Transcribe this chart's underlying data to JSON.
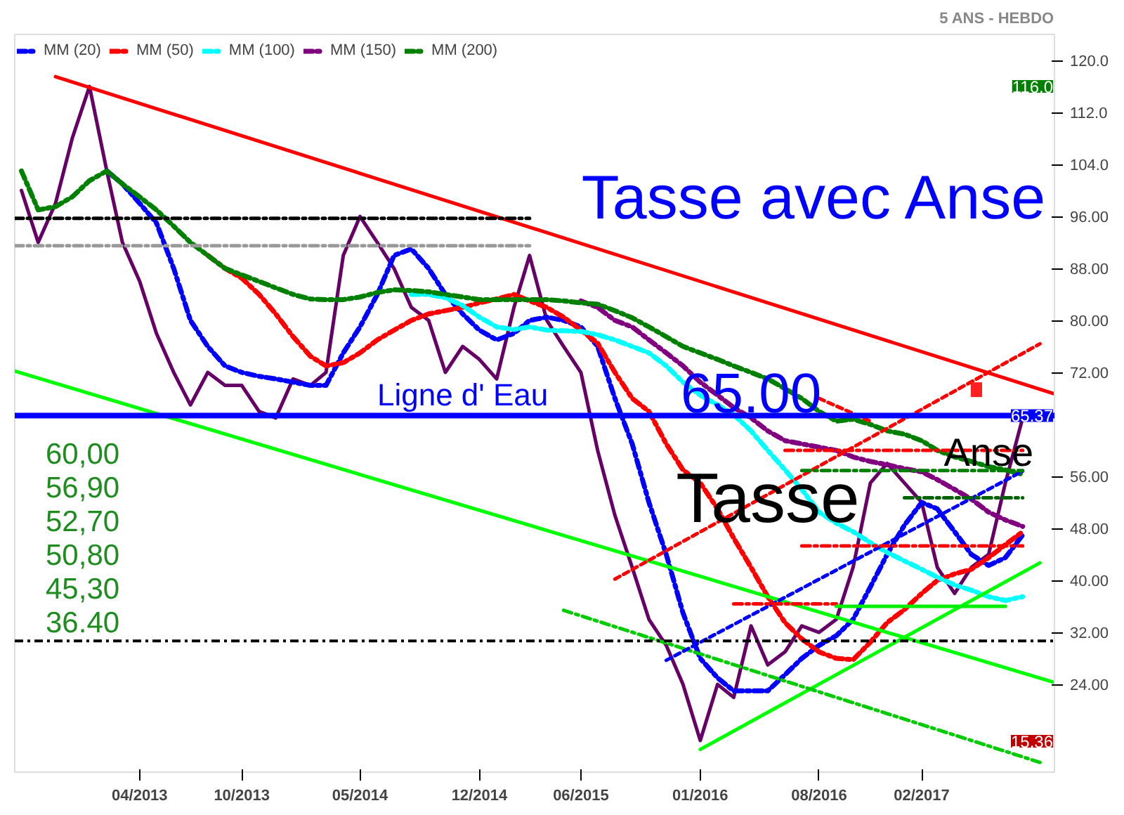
{
  "chart_data": {
    "type": "line",
    "title": "Tasse avec Anse",
    "subtitle": "5 ANS - HEBDO",
    "xlim": [
      "2012-08-20",
      "2017-09-27"
    ],
    "ylim": [
      10.5,
      124
    ],
    "xticks": [
      {
        "value": "2013-04",
        "label": "04/2013"
      },
      {
        "value": "2013-10",
        "label": "10/2013"
      },
      {
        "value": "2014-05",
        "label": "05/2014"
      },
      {
        "value": "2014-12",
        "label": "12/2014"
      },
      {
        "value": "2015-06",
        "label": "06/2015"
      },
      {
        "value": "2016-01",
        "label": "01/2016"
      },
      {
        "value": "2016-08",
        "label": "08/2016"
      },
      {
        "value": "2017-02",
        "label": "02/2017"
      }
    ],
    "yticks": [
      {
        "value": 120,
        "label": "120.0"
      },
      {
        "value": 112,
        "label": "112.0"
      },
      {
        "value": 104,
        "label": "104.0"
      },
      {
        "value": 96,
        "label": "96.00"
      },
      {
        "value": 88,
        "label": "88.00"
      },
      {
        "value": 80,
        "label": "80.00"
      },
      {
        "value": 72,
        "label": "72.00"
      },
      {
        "value": 56,
        "label": "56.00"
      },
      {
        "value": 48,
        "label": "48.00"
      },
      {
        "value": 40,
        "label": "40.00"
      },
      {
        "value": 32,
        "label": "32.00"
      },
      {
        "value": 24,
        "label": "24.00"
      }
    ],
    "legend": "top left",
    "grid": false,
    "marker": "none",
    "series": [
      {
        "color": "#660066",
        "line_style": "solid",
        "x": [
          "2012-09",
          "2012-10",
          "2012-11",
          "2012-12",
          "2013-01",
          "2013-02",
          "2013-03",
          "2013-04",
          "2013-05",
          "2013-06",
          "2013-07",
          "2013-08",
          "2013-09",
          "2013-10",
          "2013-11",
          "2013-12",
          "2014-01",
          "2014-02",
          "2014-03",
          "2014-04",
          "2014-05",
          "2014-06",
          "2014-07",
          "2014-08",
          "2014-09",
          "2014-10",
          "2014-11",
          "2014-12",
          "2015-01",
          "2015-02",
          "2015-03",
          "2015-04",
          "2015-05",
          "2015-06",
          "2015-07",
          "2015-08",
          "2015-09",
          "2015-10",
          "2015-11",
          "2015-12",
          "2016-01",
          "2016-02",
          "2016-03",
          "2016-04",
          "2016-05",
          "2016-06",
          "2016-07",
          "2016-08",
          "2016-09",
          "2016-10",
          "2016-11",
          "2016-12",
          "2017-01",
          "2017-02",
          "2017-03",
          "2017-04",
          "2017-05",
          "2017-06",
          "2017-07",
          "2017-08"
        ],
        "values": [
          100,
          92,
          98,
          108,
          116,
          103,
          92,
          86,
          78,
          72,
          67,
          72,
          70,
          70,
          66,
          65,
          71,
          70,
          72,
          90,
          96,
          92,
          88,
          82,
          80,
          72,
          76,
          74,
          71,
          82,
          90,
          80,
          76,
          72,
          60,
          50,
          42,
          34,
          30,
          24,
          15.36,
          24,
          22,
          33,
          27,
          29,
          33,
          32,
          34,
          42,
          55,
          58,
          55,
          52,
          42,
          38,
          42,
          44,
          55,
          65
        ]
      },
      {
        "name": "MM (20)",
        "color": "#0000ff",
        "line_style": "dashed",
        "x": [
          "2013-02",
          "2013-03",
          "2013-04",
          "2013-05",
          "2013-06",
          "2013-07",
          "2013-08",
          "2013-09",
          "2013-10",
          "2013-11",
          "2013-12",
          "2014-01",
          "2014-02",
          "2014-03",
          "2014-04",
          "2014-05",
          "2014-06",
          "2014-07",
          "2014-08",
          "2014-09",
          "2014-10",
          "2014-11",
          "2014-12",
          "2015-01",
          "2015-02",
          "2015-03",
          "2015-04",
          "2015-05",
          "2015-06",
          "2015-07",
          "2015-08",
          "2015-09",
          "2015-10",
          "2015-11",
          "2015-12",
          "2016-01",
          "2016-02",
          "2016-03",
          "2016-04",
          "2016-05",
          "2016-06",
          "2016-07",
          "2016-08",
          "2016-09",
          "2016-10",
          "2016-11",
          "2016-12",
          "2017-01",
          "2017-02",
          "2017-03",
          "2017-04",
          "2017-05",
          "2017-06",
          "2017-07",
          "2017-08"
        ],
        "values": [
          103,
          101,
          98,
          95,
          88,
          80,
          76,
          73,
          72,
          71.4,
          71,
          70.5,
          70,
          70,
          75,
          79,
          84,
          90,
          91,
          88,
          84,
          81,
          78.5,
          77,
          78,
          80,
          80.5,
          80,
          79,
          76,
          68,
          61,
          52,
          44,
          35,
          28,
          25,
          23,
          23,
          23,
          25.5,
          28,
          30,
          31.5,
          34,
          39,
          44,
          48.5,
          52,
          51,
          47.5,
          44,
          42.3,
          43.5,
          47
        ]
      },
      {
        "name": "MM (50)",
        "color": "#ff0000",
        "line_style": "dashed",
        "x": [
          "2013-08",
          "2013-09",
          "2013-10",
          "2013-11",
          "2013-12",
          "2014-01",
          "2014-02",
          "2014-03",
          "2014-04",
          "2014-05",
          "2014-06",
          "2014-07",
          "2014-08",
          "2014-09",
          "2014-10",
          "2014-11",
          "2014-12",
          "2015-01",
          "2015-02",
          "2015-03",
          "2015-04",
          "2015-05",
          "2015-06",
          "2015-07",
          "2015-08",
          "2015-09",
          "2015-10",
          "2015-11",
          "2015-12",
          "2016-01",
          "2016-02",
          "2016-03",
          "2016-04",
          "2016-05",
          "2016-06",
          "2016-07",
          "2016-08",
          "2016-09",
          "2016-10",
          "2016-11",
          "2016-12",
          "2017-01",
          "2017-02",
          "2017-03",
          "2017-04",
          "2017-05",
          "2017-06",
          "2017-07",
          "2017-08"
        ],
        "values": [
          90,
          88,
          86.5,
          84,
          81,
          77.5,
          74.5,
          73,
          73.5,
          75,
          77,
          78.5,
          80,
          81,
          81.5,
          82,
          82.7,
          83.3,
          84,
          83,
          82,
          80.5,
          78.5,
          76.5,
          72,
          68,
          66,
          61,
          57,
          55,
          51,
          46.5,
          42,
          37.5,
          33.5,
          31,
          29,
          28,
          27.8,
          30.5,
          33.5,
          35.5,
          38,
          40,
          41,
          41.7,
          43.5,
          45.5,
          47.5
        ]
      },
      {
        "name": "MM (100)",
        "color": "#00ffff",
        "line_style": "dashed",
        "x": [
          "2014-08",
          "2014-09",
          "2014-10",
          "2014-11",
          "2014-12",
          "2015-01",
          "2015-02",
          "2015-03",
          "2015-04",
          "2015-05",
          "2015-06",
          "2015-07",
          "2015-08",
          "2015-09",
          "2015-10",
          "2015-11",
          "2015-12",
          "2016-01",
          "2016-02",
          "2016-03",
          "2016-04",
          "2016-05",
          "2016-06",
          "2016-07",
          "2016-08",
          "2016-09",
          "2016-10",
          "2016-11",
          "2016-12",
          "2017-01",
          "2017-02",
          "2017-03",
          "2017-04",
          "2017-05",
          "2017-06",
          "2017-07",
          "2017-08"
        ],
        "values": [
          84,
          84,
          83.5,
          82.3,
          80.5,
          79,
          78.6,
          79,
          78.5,
          78.4,
          78.3,
          77.8,
          77,
          76,
          75,
          73,
          70.5,
          68.5,
          67,
          65.5,
          63,
          60,
          57,
          54,
          50.5,
          48.8,
          47.5,
          45.8,
          44.3,
          43,
          41.7,
          40.5,
          39.3,
          38.5,
          37.5,
          36.9,
          37.5
        ]
      },
      {
        "name": "MM (150)",
        "color": "#800080",
        "line_style": "dashed",
        "x": [
          "2015-06",
          "2015-07",
          "2015-08",
          "2015-09",
          "2015-10",
          "2015-11",
          "2015-12",
          "2016-01",
          "2016-02",
          "2016-03",
          "2016-04",
          "2016-05",
          "2016-06",
          "2016-07",
          "2016-08",
          "2016-09",
          "2016-10",
          "2016-11",
          "2016-12",
          "2017-01",
          "2017-02",
          "2017-03",
          "2017-04",
          "2017-05",
          "2017-06",
          "2017-07",
          "2017-08"
        ],
        "values": [
          83,
          82,
          80,
          79,
          77,
          75,
          73,
          70.5,
          68.5,
          66.6,
          65,
          63,
          61.5,
          61,
          60.5,
          60,
          59,
          58.3,
          57.8,
          57.2,
          56.7,
          55.5,
          54,
          52.5,
          50.5,
          49.3,
          48.3
        ]
      },
      {
        "name": "MM (200)",
        "color": "#008000",
        "line_style": "dashed",
        "x": [
          "2012-09",
          "2012-10",
          "2012-11",
          "2012-12",
          "2013-01",
          "2013-02",
          "2013-03",
          "2013-04",
          "2013-05",
          "2013-06",
          "2013-07",
          "2013-08",
          "2013-09",
          "2013-10",
          "2013-11",
          "2013-12",
          "2014-01",
          "2014-02",
          "2014-03",
          "2014-04",
          "2014-05",
          "2014-06",
          "2014-07",
          "2014-08",
          "2014-09",
          "2014-10",
          "2014-11",
          "2014-12",
          "2015-01",
          "2015-02",
          "2015-03",
          "2015-04",
          "2015-05",
          "2015-06",
          "2015-07",
          "2015-08",
          "2015-09",
          "2015-10",
          "2015-11",
          "2015-12",
          "2016-01",
          "2016-02",
          "2016-03",
          "2016-04",
          "2016-05",
          "2016-06",
          "2016-07",
          "2016-08",
          "2016-09",
          "2016-10",
          "2016-11",
          "2016-12",
          "2017-01",
          "2017-02",
          "2017-03",
          "2017-04",
          "2017-05",
          "2017-06",
          "2017-07",
          "2017-08"
        ],
        "values": [
          103,
          97,
          97.5,
          99,
          101.5,
          103,
          101,
          99,
          97,
          94.5,
          92,
          90,
          88,
          87,
          86,
          85,
          84,
          83.3,
          83.2,
          83.2,
          83.6,
          84.3,
          84.7,
          84.6,
          84.4,
          84,
          83.6,
          83.2,
          83.2,
          83.2,
          83.2,
          83.2,
          83,
          82.7,
          82.5,
          81.5,
          80.4,
          79,
          77.5,
          76,
          75,
          74,
          73,
          72,
          71,
          69.5,
          68,
          66,
          64.5,
          64.8,
          64,
          63,
          62.5,
          61.5,
          60,
          59,
          58.3,
          57.5,
          57,
          56.3
        ]
      },
      {
        "color": "#ff0000",
        "line_style": "solid",
        "x": [
          "2012-11",
          "2017-09-27"
        ],
        "values": [
          117.5,
          68.7
        ]
      },
      {
        "color": "#00ff00",
        "line_style": "solid",
        "x": [
          "2012-08-20",
          "2017-09-27"
        ],
        "values": [
          72.2,
          24.3
        ]
      },
      {
        "color": "#00ff00",
        "line_style": "solid",
        "x": [
          "2016-01",
          "2017-09"
        ],
        "values": [
          14,
          42.7
        ]
      },
      {
        "color": "#00cc00",
        "line_style": "dashed",
        "x": [
          "2015-05",
          "2017-09"
        ],
        "values": [
          35.4,
          12
        ]
      },
      {
        "color": "#ff0000",
        "line_style": "dotted",
        "x": [
          "2015-08",
          "2017-09"
        ],
        "values": [
          40.2,
          76.4
        ]
      },
      {
        "color": "#ff0000",
        "line_style": "dotted",
        "x": [
          "2016-08",
          "2016-11"
        ],
        "values": [
          68,
          64.5
        ]
      },
      {
        "color": "#0000ff",
        "line_style": "dotted",
        "x": [
          "2015-11",
          "2017-08"
        ],
        "values": [
          27.7,
          56.8
        ]
      },
      {
        "color": "#000000",
        "line_style": "dashed",
        "x": [
          "2012-08-20",
          "2015-03"
        ],
        "values": [
          95.7,
          95.7
        ]
      },
      {
        "color": "#999999",
        "line_style": "dashed",
        "x": [
          "2012-08-20",
          "2015-03"
        ],
        "values": [
          91.5,
          91.5
        ]
      },
      {
        "color": "#ff0000",
        "line_style": "dashed",
        "x": [
          "2016-06",
          "2017-08"
        ],
        "values": [
          60,
          60
        ]
      },
      {
        "color": "#008000",
        "line_style": "dashed",
        "x": [
          "2016-07",
          "2017-08"
        ],
        "values": [
          56.9,
          56.9
        ]
      },
      {
        "color": "#006400",
        "line_style": "dashed",
        "x": [
          "2017-01",
          "2017-08"
        ],
        "values": [
          52.7,
          52.7
        ]
      },
      {
        "color": "#ff0000",
        "line_style": "dashed",
        "x": [
          "2016-07",
          "2017-08"
        ],
        "values": [
          45.3,
          45.3
        ]
      },
      {
        "color": "#ff0000",
        "line_style": "dashed",
        "x": [
          "2016-03",
          "2016-09"
        ],
        "values": [
          36.4,
          36.4
        ]
      },
      {
        "color": "#00ee00",
        "line_style": "solid",
        "x": [
          "2016-09",
          "2017-07"
        ],
        "values": [
          36,
          36
        ]
      }
    ],
    "ref_lines": [
      {
        "axis": "y",
        "value": 65.37,
        "label": "65.37",
        "color": "#0000ff",
        "line_style": "solid"
      },
      {
        "axis": "y",
        "value": 30.7,
        "color": "#000000",
        "line_style": "dashed"
      }
    ],
    "annotations": [
      {
        "text": "Ligne d' Eau",
        "x": "2014-11",
        "y": 65.37
      },
      {
        "text": "65.00",
        "x": "2016-04",
        "y": 65.37
      },
      {
        "text": "Tasse",
        "x": "2016-05",
        "y": 52.7
      },
      {
        "text": "Anse",
        "x": "2017-06",
        "y": 59.7
      },
      {
        "text": "116.0",
        "y": 116
      },
      "15.36",
      "60,00",
      "56,90",
      "52,70",
      "50,80",
      "45,30",
      "36.40"
    ]
  }
}
